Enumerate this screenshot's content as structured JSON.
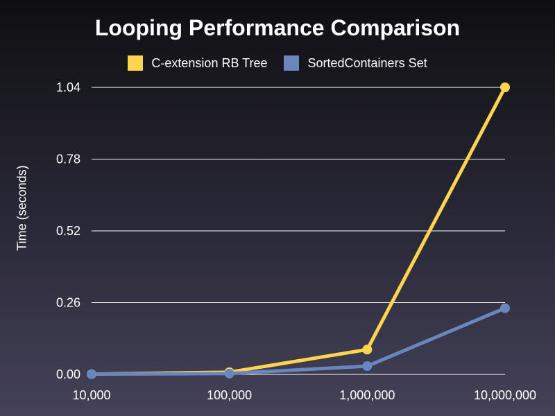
{
  "chart_data": {
    "type": "line",
    "title": "Looping Performance Comparison",
    "xlabel": "",
    "ylabel": "Time (seconds)",
    "categories": [
      "10,000",
      "100,000",
      "1,000,000",
      "10,000,000"
    ],
    "yticks": [
      "0.00",
      "0.26",
      "0.52",
      "0.78",
      "1.04"
    ],
    "ylim": [
      0,
      1.04
    ],
    "grid": true,
    "legend_position": "top",
    "series": [
      {
        "name": "C-extension RB Tree",
        "color": "#ffd54f",
        "values": [
          0.001,
          0.008,
          0.09,
          1.04
        ]
      },
      {
        "name": "SortedContainers Set",
        "color": "#6a86be",
        "values": [
          0.001,
          0.003,
          0.03,
          0.24
        ]
      }
    ]
  }
}
